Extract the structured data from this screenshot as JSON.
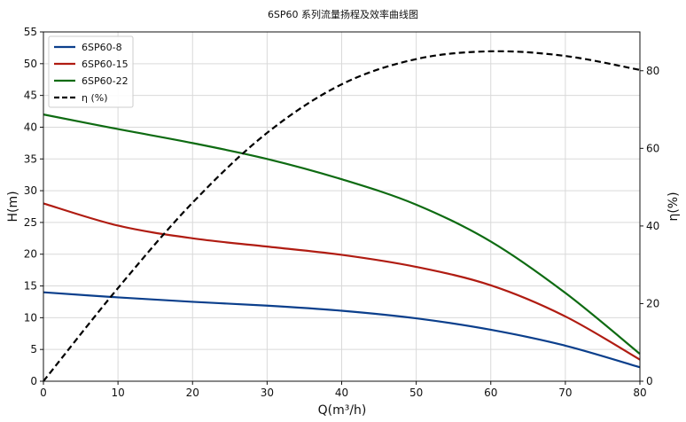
{
  "chart_data": {
    "type": "line",
    "title": "6SP60 系列流量扬程及效率曲线图",
    "xlabel": "Q(m³/h)",
    "ylabel": "H(m)",
    "y2label": "η(%)",
    "xlim": [
      0,
      80
    ],
    "ylim": [
      0,
      55
    ],
    "y2lim": [
      0,
      90
    ],
    "xticks": [
      0,
      10,
      20,
      30,
      40,
      50,
      60,
      70,
      80
    ],
    "yticks": [
      0,
      5,
      10,
      15,
      20,
      25,
      30,
      35,
      40,
      45,
      50,
      55
    ],
    "y2ticks": [
      0,
      20,
      40,
      60,
      80
    ],
    "grid": true,
    "legend_position": "top-left",
    "x": [
      0,
      10,
      20,
      30,
      40,
      50,
      60,
      70,
      80
    ],
    "series": [
      {
        "name": "6SP60-8",
        "axis": "left",
        "color": "#0b3f8c",
        "dash": "solid",
        "values": [
          14.0,
          13.2,
          12.5,
          11.9,
          11.1,
          9.9,
          8.1,
          5.6,
          2.2
        ]
      },
      {
        "name": "6SP60-15",
        "axis": "left",
        "color": "#b01c12",
        "dash": "solid",
        "values": [
          28.0,
          24.5,
          22.5,
          21.2,
          19.9,
          18.0,
          15.1,
          10.2,
          3.4
        ]
      },
      {
        "name": "6SP60-22",
        "axis": "left",
        "color": "#0e6b12",
        "dash": "solid",
        "values": [
          42.0,
          39.7,
          37.5,
          35.0,
          31.8,
          27.8,
          22.0,
          13.9,
          4.3
        ]
      },
      {
        "name": "η (%)",
        "axis": "right",
        "color": "#000000",
        "dash": "dashed",
        "values": [
          0,
          24.0,
          46.0,
          64.0,
          76.5,
          83.0,
          85.0,
          83.8,
          80.2
        ]
      }
    ]
  }
}
